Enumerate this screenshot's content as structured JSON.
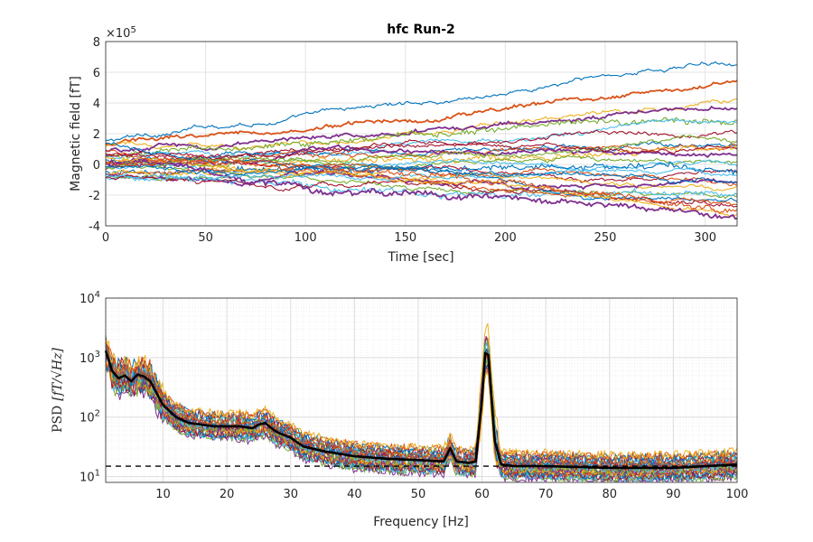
{
  "title": "hfc Run-2",
  "palette": [
    "#0072BD",
    "#D95319",
    "#EDB120",
    "#7E2F8E",
    "#77AC30",
    "#4DBEEE",
    "#A2142F"
  ],
  "chart_data": [
    {
      "type": "line",
      "xlabel": "Time [sec]",
      "ylabel": "Magnetic field [fT]",
      "exponent_label": "×10",
      "exponent_power": "5",
      "xlim": [
        0,
        316
      ],
      "ylim": [
        -4,
        8
      ],
      "y_unit_scale": 100000,
      "x_ticks": [
        0,
        50,
        100,
        150,
        200,
        250,
        300
      ],
      "x_tick_labels": [
        "0",
        "50",
        "100",
        "150",
        "200",
        "250",
        "300"
      ],
      "y_ticks": [
        -4,
        -2,
        0,
        2,
        4,
        6,
        8
      ],
      "y_tick_labels": [
        "-4",
        "-2",
        "0",
        "2",
        "4",
        "6",
        "8"
      ],
      "grid": true,
      "series_count": 30,
      "series_start": [
        1.5,
        1.2,
        1.0,
        0.8,
        0.6,
        0.5,
        0.4,
        0.3,
        0.2,
        0.1,
        0.0,
        -0.1,
        -0.2,
        -0.3,
        -0.4,
        -0.5,
        -0.6,
        -0.7,
        -0.8,
        -0.9,
        -1.0,
        1.3,
        0.9,
        0.5,
        0.0,
        -0.3,
        -0.6,
        0.7,
        -0.2,
        0.2
      ],
      "series_end": [
        6.9,
        5.3,
        4.0,
        3.6,
        3.0,
        2.5,
        2.0,
        1.5,
        1.2,
        0.9,
        0.6,
        0.3,
        0.0,
        -0.3,
        -0.6,
        -0.9,
        -1.2,
        -1.5,
        -1.8,
        -2.1,
        -2.4,
        -2.7,
        -3.0,
        -3.3,
        -3.5,
        1.7,
        -0.8,
        1.0,
        -1.0,
        -2.9
      ]
    },
    {
      "type": "line",
      "xlabel": "Frequency [Hz]",
      "ylabel": "PSD [fT/√Hz]",
      "ylabel_main": "PSD",
      "ylabel_unit": "[fT/√Hz]",
      "y_scale": "log",
      "xlim": [
        1,
        100
      ],
      "ylim": [
        8,
        10000
      ],
      "x_ticks": [
        10,
        20,
        30,
        40,
        50,
        60,
        70,
        80,
        90,
        100
      ],
      "x_tick_labels": [
        "10",
        "20",
        "30",
        "40",
        "50",
        "60",
        "70",
        "80",
        "90",
        "100"
      ],
      "y_ticks": [
        10,
        100,
        1000,
        10000
      ],
      "y_tick_base": "10",
      "y_tick_powers": [
        "1",
        "2",
        "3",
        "4"
      ],
      "grid": true,
      "series_count": 30,
      "mean_series": {
        "color": "#000000",
        "x": [
          1,
          2,
          3,
          4,
          5,
          6,
          7,
          8,
          9,
          10,
          12,
          14,
          16,
          18,
          20,
          22,
          24,
          25,
          26,
          27,
          28,
          30,
          32,
          35,
          40,
          45,
          50,
          54,
          55,
          56,
          58,
          59,
          60,
          60.5,
          61,
          61.5,
          62,
          63,
          65,
          70,
          80,
          90,
          100
        ],
        "y": [
          1300,
          600,
          450,
          500,
          400,
          520,
          480,
          400,
          250,
          160,
          100,
          80,
          75,
          70,
          70,
          70,
          65,
          75,
          80,
          65,
          55,
          45,
          32,
          27,
          22,
          20,
          19,
          18,
          30,
          18,
          17,
          18,
          200,
          1200,
          1100,
          200,
          40,
          16,
          15,
          15,
          14,
          14,
          16
        ]
      },
      "reference_line": {
        "y": 15,
        "style": "dashed",
        "color": "#000000"
      }
    }
  ]
}
